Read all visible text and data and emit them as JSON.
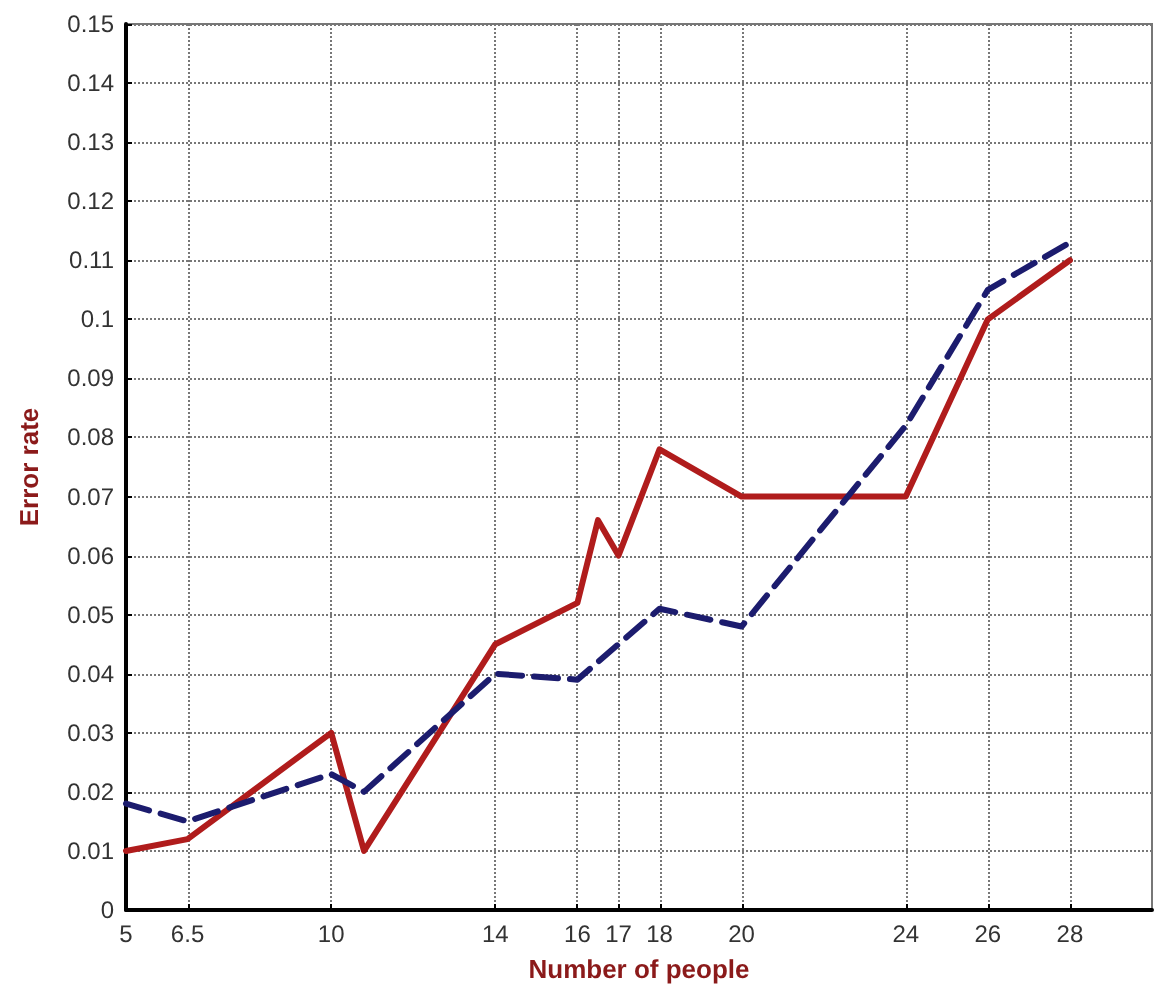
{
  "chart_data": {
    "type": "line",
    "xlabel": "Number of people",
    "ylabel": "Error rate",
    "xlim": [
      5,
      30
    ],
    "xticks": [
      5,
      6.5,
      10,
      14,
      16,
      17,
      18,
      20,
      24,
      26,
      28
    ],
    "ylim": [
      0,
      0.15
    ],
    "yticks": [
      0,
      0.01,
      0.02,
      0.03,
      0.04,
      0.05,
      0.06,
      0.07,
      0.08,
      0.09,
      0.1,
      0.11,
      0.12,
      0.13,
      0.14,
      0.15
    ],
    "grid": true,
    "marker": "none",
    "series": [
      {
        "color": "#b01c1c",
        "line_style": "solid",
        "x": [
          5,
          6.5,
          10,
          10.8,
          14,
          16,
          16.5,
          17,
          18,
          20,
          24,
          26,
          28
        ],
        "values": [
          0.01,
          0.012,
          0.03,
          0.01,
          0.045,
          0.052,
          0.066,
          0.06,
          0.078,
          0.07,
          0.07,
          0.1,
          0.11
        ]
      },
      {
        "color": "#1c1c6e",
        "line_style": "dashed",
        "x": [
          5,
          6.5,
          10,
          10.8,
          14,
          16,
          18,
          20,
          24,
          26,
          28
        ],
        "values": [
          0.018,
          0.015,
          0.023,
          0.02,
          0.04,
          0.039,
          0.051,
          0.048,
          0.082,
          0.105,
          0.113
        ]
      }
    ]
  }
}
